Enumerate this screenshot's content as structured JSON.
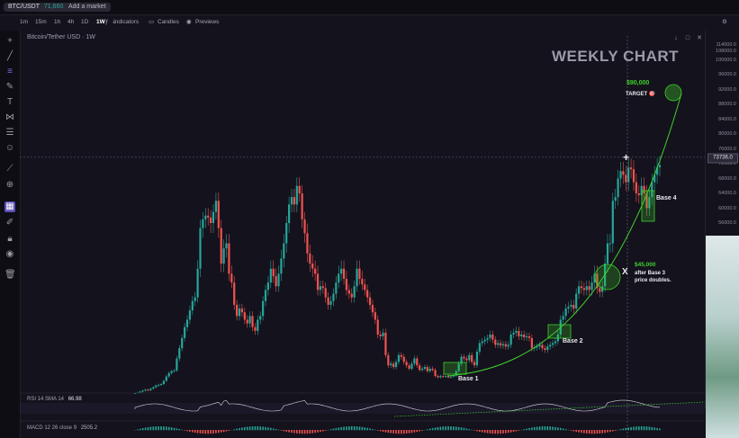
{
  "topbar": {
    "symbol": "BTC/USDT",
    "price": "71,660.9",
    "add_market": "Add a market"
  },
  "toolbar": {
    "timeframes": [
      "1m",
      "15m",
      "1h",
      "4h",
      "1D",
      "1W"
    ],
    "active_timeframe": "1W",
    "indicators": "Indicators",
    "candles": "Candles",
    "previews": "Previews"
  },
  "chart_title": "Bitcoin/Tether USD · 1W",
  "right_controls": [
    "↓",
    "□",
    "✕"
  ],
  "colors": {
    "bull": "#26a69a",
    "bear": "#ef5350",
    "accent_green": "#3ed12c",
    "curve": "#3ed12c",
    "background": "#14121c"
  },
  "icons": [
    "crosshair-icon",
    "trendline-icon",
    "fib-icon",
    "brush-icon",
    "text-icon",
    "pattern-icon",
    "measure-icon",
    "emoji-icon",
    "ruler-icon",
    "zoom-icon",
    "magnet-icon",
    "lock-icon",
    "eye-icon",
    "trash-icon"
  ],
  "overlay": {
    "title": "WEEKLY CHART",
    "target_price": "$90,000",
    "target_label": "TARGET 🎯",
    "base1": "Base 1",
    "base2": "Base 2",
    "base4": "Base 4",
    "mid_price": "$45,000",
    "mid_note_1": "after Base 3",
    "mid_note_2": "price doubles.",
    "x_mark": "X",
    "plus_mark": "+"
  },
  "current_price_tag": "73736.0",
  "rsi": {
    "label": "RSI 14 SMA 14",
    "value": "66.98"
  },
  "macd": {
    "label": "MACD 12 26 close 9",
    "value": "2505.2"
  },
  "chart_data": {
    "type": "candlestick",
    "title": "Bitcoin/Tether USD · 1W",
    "y_ticks": [
      114000,
      108000,
      100000,
      96000,
      92000,
      88000,
      84000,
      80000,
      76000,
      72000,
      68000,
      64000,
      60000,
      56000
    ],
    "y_tick_labels": [
      "114000.0",
      "108000.0",
      "100000.0",
      "96000.0",
      "92000.0",
      "88000.0",
      "84000.0",
      "80000.0",
      "76000.0",
      "72000.0",
      "68000.0",
      "64000.0",
      "60000.0",
      "56000.0"
    ],
    "series": [
      {
        "name": "BTC weekly close (approx.)",
        "values": [
          9800,
          10200,
          10600,
          11000,
          11400,
          11200,
          11800,
          12400,
          13100,
          13400,
          13700,
          15000,
          16800,
          18200,
          19000,
          19300,
          23000,
          26000,
          29000,
          32000,
          34000,
          36500,
          39000,
          40000,
          47000,
          55000,
          57000,
          58000,
          57500,
          56000,
          59000,
          62000,
          55000,
          48000,
          51000,
          52000,
          46000,
          44000,
          38000,
          35000,
          37000,
          36000,
          34000,
          33000,
          35000,
          32000,
          31000,
          34000,
          35000,
          39000,
          42000,
          44000,
          47000,
          45500,
          43000,
          46000,
          49000,
          52000,
          56000,
          61000,
          63000,
          61000,
          66000,
          64000,
          57000,
          54000,
          50000,
          48000,
          47000,
          46000,
          42000,
          43000,
          42500,
          40000,
          38000,
          39000,
          41000,
          44000,
          46000,
          47000,
          45000,
          42000,
          41000,
          40000,
          43000,
          47000,
          45000,
          43500,
          42000,
          40000,
          38000,
          36000,
          34000,
          30000,
          29500,
          30500,
          24000,
          21000,
          21500,
          20500,
          22000,
          24000,
          23500,
          22000,
          21000,
          20000,
          21500,
          23000,
          21000,
          19500,
          20000,
          20500,
          19000,
          20000,
          19500,
          17000,
          16500,
          17000,
          16800,
          17000,
          16500,
          16800,
          17200,
          19000,
          21500,
          23500,
          23000,
          22500,
          24000,
          22000,
          21000,
          25000,
          27500,
          28000,
          28500,
          29000,
          30000,
          28500,
          27000,
          27500,
          26800,
          27200,
          26500,
          27000,
          30000,
          30500,
          31000,
          29500,
          30000,
          29200,
          29500,
          29000,
          26000,
          26200,
          26500,
          27000,
          26000,
          25500,
          26500,
          27000,
          27500,
          28000,
          30000,
          34000,
          35000,
          37000,
          37500,
          38000,
          37000,
          41000,
          43000,
          42500,
          42000,
          43000,
          42000,
          44000,
          46000,
          42500,
          41500,
          43000,
          48000,
          52000,
          52000,
          62000,
          63000,
          68000,
          70000,
          69000,
          67000,
          71000,
          70500,
          67000,
          64000,
          63500,
          66000,
          64000,
          60000,
          63000,
          67000,
          69000,
          71000,
          71600
        ]
      }
    ],
    "annotations": {
      "projected_curve_end": 90000,
      "target": 90000,
      "mid_level": 45000
    },
    "grid": false,
    "legend": "none"
  }
}
